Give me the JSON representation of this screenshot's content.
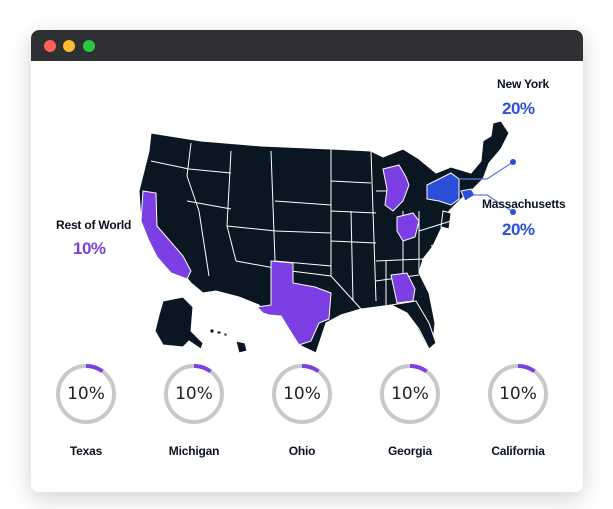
{
  "window": {
    "controls": {
      "close_color": "#fe5f57",
      "minimize_color": "#febc2e",
      "maximize_color": "#28c840"
    }
  },
  "colors": {
    "base_state": "#0a1622",
    "border": "#ffffff",
    "highlight_purple": "#7b3fe4",
    "highlight_blue": "#2b4fd8",
    "ring_track": "#c8c8c8",
    "callout_line": "#5d7be0"
  },
  "map": {
    "callouts": [
      {
        "name": "New York",
        "value": "20%",
        "color": "#2b4fd8"
      },
      {
        "name": "Massachusetts",
        "value": "20%",
        "color": "#2b4fd8"
      },
      {
        "name": "Rest of World",
        "value": "10%",
        "color": "#7b3fe4"
      }
    ],
    "highlighted_states": [
      {
        "state": "California",
        "color": "#7b3fe4"
      },
      {
        "state": "Texas",
        "color": "#7b3fe4"
      },
      {
        "state": "Michigan",
        "color": "#7b3fe4"
      },
      {
        "state": "Ohio",
        "color": "#7b3fe4"
      },
      {
        "state": "Georgia",
        "color": "#7b3fe4"
      },
      {
        "state": "New York",
        "color": "#2b4fd8"
      },
      {
        "state": "Massachusetts",
        "color": "#2b4fd8"
      }
    ]
  },
  "rings": [
    {
      "label": "Texas",
      "value_text": "10%",
      "fraction": 0.1
    },
    {
      "label": "Michigan",
      "value_text": "10%",
      "fraction": 0.1
    },
    {
      "label": "Ohio",
      "value_text": "10%",
      "fraction": 0.1
    },
    {
      "label": "Georgia",
      "value_text": "10%",
      "fraction": 0.1
    },
    {
      "label": "California",
      "value_text": "10%",
      "fraction": 0.1
    }
  ]
}
